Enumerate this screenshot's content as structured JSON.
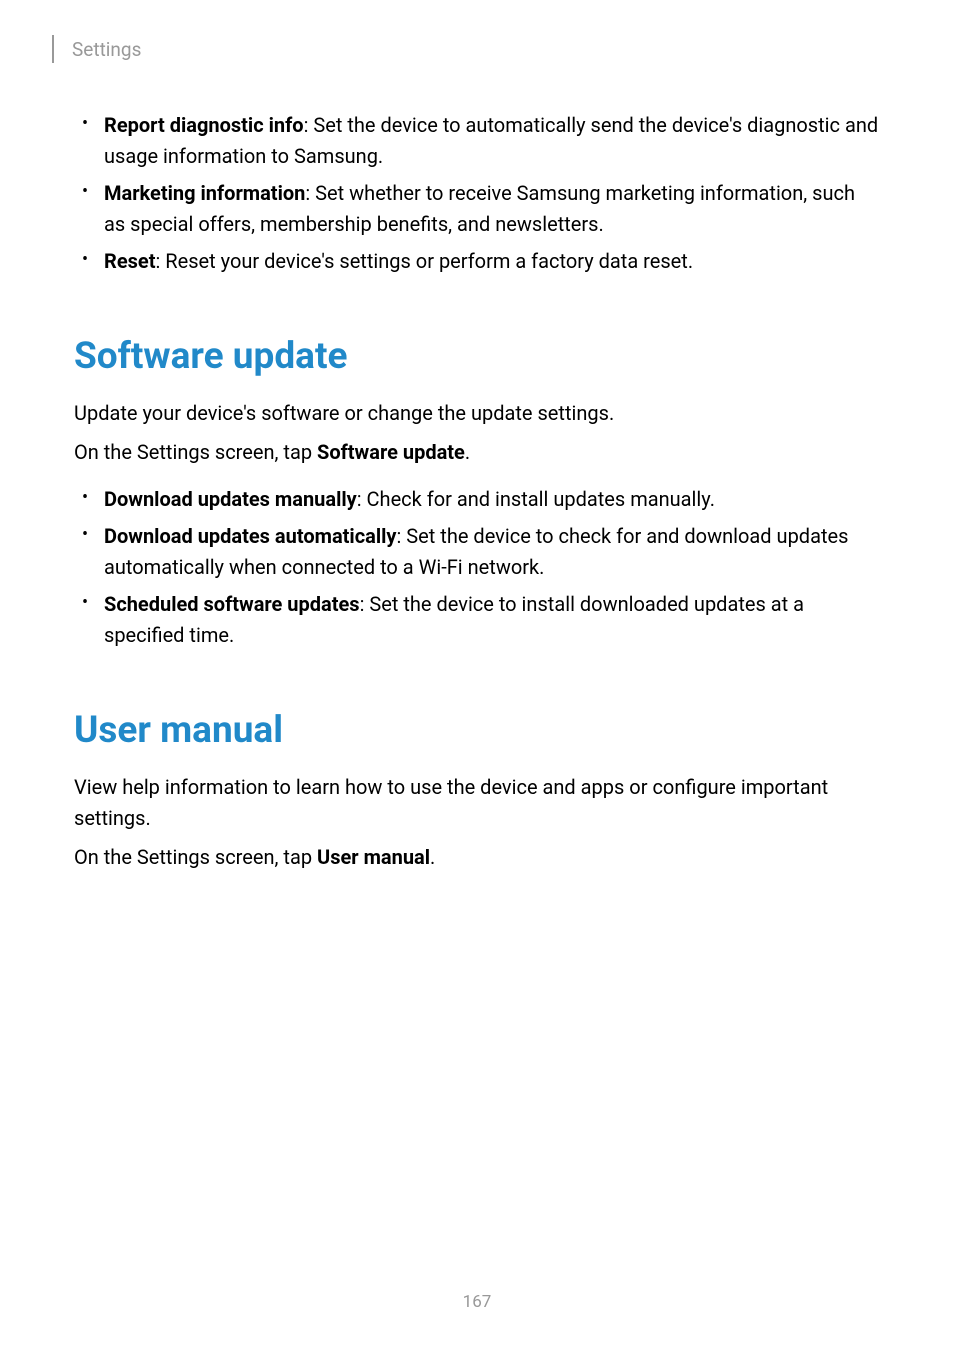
{
  "header": {
    "title": "Settings"
  },
  "topList": {
    "items": [
      {
        "bold": "Report diagnostic info",
        "text": ": Set the device to automatically send the device's diagnostic and usage information to Samsung."
      },
      {
        "bold": "Marketing information",
        "text": ": Set whether to receive Samsung marketing information, such as special offers, membership benefits, and newsletters."
      },
      {
        "bold": "Reset",
        "text": ": Reset your device's settings or perform a factory data reset."
      }
    ]
  },
  "section1": {
    "heading": "Software update",
    "intro": "Update your device's software or change the update settings.",
    "instruction_pre": "On the Settings screen, tap ",
    "instruction_bold": "Software update",
    "instruction_post": ".",
    "items": [
      {
        "bold": "Download updates manually",
        "text": ": Check for and install updates manually."
      },
      {
        "bold": "Download updates automatically",
        "text": ": Set the device to check for and download updates automatically when connected to a Wi-Fi network."
      },
      {
        "bold": "Scheduled software updates",
        "text": ": Set the device to install downloaded updates at a specified time."
      }
    ]
  },
  "section2": {
    "heading": "User manual",
    "intro": "View help information to learn how to use the device and apps or configure important settings.",
    "instruction_pre": "On the Settings screen, tap ",
    "instruction_bold": "User manual",
    "instruction_post": "."
  },
  "pageNumber": "167",
  "styling": {
    "heading_color": "#2189c9",
    "header_text_color": "#999999",
    "body_text_color": "#000000",
    "page_number_color": "#999999",
    "background_color": "#ffffff",
    "heading_fontsize": 37,
    "body_fontsize": 20,
    "header_fontsize": 19,
    "page_number_fontsize": 17
  }
}
